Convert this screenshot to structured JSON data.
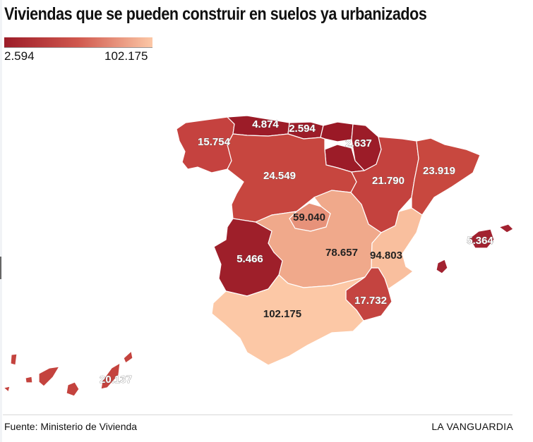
{
  "title": "Viviendas que se pueden construir en suelos ya urbanizados",
  "legend": {
    "min": "2.594",
    "max": "102.175",
    "color_min": "#9c1c28",
    "color_max": "#fcc8a6"
  },
  "regions": [
    {
      "id": "galicia",
      "value": "15.754",
      "color": "#c5423f"
    },
    {
      "id": "asturias",
      "value": "4.874",
      "color": "#9c1c28"
    },
    {
      "id": "cantabria",
      "value": "2.594",
      "color": "#9c1c28"
    },
    {
      "id": "pais-vasco",
      "value": "",
      "color": "#9a1926"
    },
    {
      "id": "navarra",
      "value": "2.637",
      "color": "#9c1c28"
    },
    {
      "id": "la-rioja",
      "value": "",
      "color": "#9c1c28"
    },
    {
      "id": "castilla-y-leon",
      "value": "24.549",
      "color": "#c7463f"
    },
    {
      "id": "aragon",
      "value": "21.790",
      "color": "#c4423e"
    },
    {
      "id": "cataluna",
      "value": "23.919",
      "color": "#c8483f"
    },
    {
      "id": "madrid",
      "value": "59.040",
      "color": "#e7927a"
    },
    {
      "id": "extremadura",
      "value": "5.466",
      "color": "#9e1f2a"
    },
    {
      "id": "castilla-la-mancha",
      "value": "78.657",
      "color": "#f0a98b"
    },
    {
      "id": "comunidad-valenciana",
      "value": "94.803",
      "color": "#f9bf9e"
    },
    {
      "id": "murcia",
      "value": "17.732",
      "color": "#c44440"
    },
    {
      "id": "andalucia",
      "value": "102.175",
      "color": "#fcc8a6"
    },
    {
      "id": "baleares",
      "value": "5.364",
      "color": "#a22230"
    },
    {
      "id": "canarias",
      "value": "20.137",
      "color": "#c4433e"
    }
  ],
  "footer": {
    "source": "Fuente: Ministerio de Vivienda",
    "brand": "LA VANGUARDIA"
  }
}
